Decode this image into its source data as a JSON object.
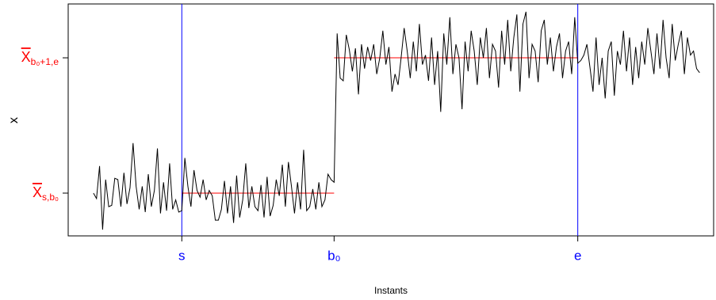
{
  "chart_data": {
    "type": "line",
    "xlabel": "Instants",
    "ylabel": "x",
    "x": [
      1,
      2,
      3,
      4,
      5,
      6,
      7,
      8,
      9,
      10,
      11,
      12,
      13,
      14,
      15,
      16,
      17,
      18,
      19,
      20,
      21,
      22,
      23,
      24,
      25,
      26,
      27,
      28,
      29,
      30,
      31,
      32,
      33,
      34,
      35,
      36,
      37,
      38,
      39,
      40,
      41,
      42,
      43,
      44,
      45,
      46,
      47,
      48,
      49,
      50,
      51,
      52,
      53,
      54,
      55,
      56,
      57,
      58,
      59,
      60,
      61,
      62,
      63,
      64,
      65,
      66,
      67,
      68,
      69,
      70,
      71,
      72,
      73,
      74,
      75,
      76,
      77,
      78,
      79,
      80,
      81,
      82,
      83,
      84,
      85,
      86,
      87,
      88,
      89,
      90,
      91,
      92,
      93,
      94,
      95,
      96,
      97,
      98,
      99,
      100,
      101,
      102,
      103,
      104,
      105,
      106,
      107,
      108,
      109,
      110,
      111,
      112,
      113,
      114,
      115,
      116,
      117,
      118,
      119,
      120,
      121,
      122,
      123,
      124,
      125,
      126,
      127,
      128,
      129,
      130,
      131,
      132,
      133,
      134,
      135,
      136,
      137,
      138,
      139,
      140,
      141,
      142,
      143,
      144,
      145,
      146,
      147,
      148,
      149,
      150,
      151,
      152,
      153,
      154,
      155,
      156,
      157,
      158,
      159,
      160,
      161,
      162,
      163,
      164,
      165,
      166,
      167,
      168,
      169,
      170,
      171,
      172,
      173,
      174,
      175,
      176,
      177,
      178,
      179,
      180,
      181,
      182,
      183,
      184,
      185,
      186,
      187,
      188,
      189,
      190,
      191,
      192,
      193,
      194,
      195,
      196,
      197,
      198,
      199,
      200
    ],
    "series": [
      {
        "color": "#000000",
        "values": [
          0.0,
          -0.04,
          0.2,
          -0.27,
          0.1,
          -0.1,
          -0.09,
          0.11,
          0.1,
          -0.1,
          0.15,
          -0.08,
          0.04,
          0.37,
          0.05,
          -0.12,
          0.05,
          -0.14,
          0.14,
          -0.1,
          0.02,
          0.33,
          -0.15,
          0.08,
          -0.13,
          0.22,
          -0.12,
          -0.05,
          -0.14,
          -0.13,
          0.26,
          0.05,
          -0.1,
          0.17,
          0.02,
          -0.03,
          0.1,
          -0.05,
          0.02,
          -0.02,
          -0.2,
          -0.2,
          -0.12,
          0.09,
          -0.15,
          0.05,
          -0.22,
          0.13,
          -0.18,
          -0.05,
          0.22,
          -0.11,
          0.05,
          -0.1,
          -0.13,
          0.06,
          -0.18,
          0.12,
          -0.17,
          -0.09,
          0.1,
          -0.02,
          0.21,
          -0.1,
          0.23,
          0.05,
          -0.15,
          0.08,
          -0.12,
          0.32,
          -0.13,
          -0.1,
          0.03,
          -0.12,
          0.08,
          -0.1,
          -0.05,
          0.14,
          0.1,
          0.08,
          1.18,
          0.85,
          0.83,
          1.17,
          1.06,
          0.9,
          1.07,
          0.73,
          1.1,
          0.92,
          1.08,
          0.98,
          1.1,
          0.88,
          1.0,
          1.2,
          0.95,
          1.08,
          0.75,
          0.88,
          0.8,
          1.0,
          1.22,
          1.05,
          0.85,
          1.12,
          0.9,
          1.25,
          0.95,
          1.02,
          0.83,
          1.15,
          0.8,
          1.05,
          0.6,
          1.18,
          0.95,
          1.3,
          0.88,
          1.1,
          1.0,
          0.62,
          1.12,
          0.9,
          1.2,
          1.05,
          0.8,
          1.15,
          1.0,
          1.22,
          0.85,
          1.1,
          1.05,
          0.78,
          1.2,
          0.95,
          1.28,
          0.9,
          1.15,
          1.32,
          0.75,
          1.25,
          1.34,
          0.85,
          1.1,
          1.05,
          0.82,
          1.2,
          1.28,
          0.95,
          1.15,
          0.9,
          1.08,
          1.18,
          0.85,
          1.05,
          1.12,
          0.88,
          1.3,
          0.96,
          0.98,
          1.02,
          1.1,
          0.93,
          0.75,
          1.15,
          0.8,
          1.0,
          0.7,
          1.05,
          1.12,
          0.72,
          1.05,
          0.95,
          1.2,
          0.9,
          1.15,
          0.8,
          1.08,
          0.85,
          1.12,
          0.95,
          1.22,
          1.05,
          0.88,
          1.18,
          0.92,
          1.28,
          1.0,
          0.85,
          1.25,
          0.98,
          1.1,
          1.2,
          0.88,
          1.15,
          1.02,
          1.05,
          0.92,
          0.89
        ]
      }
    ],
    "xlim": [
      -7.3,
      204.6
    ],
    "ylim": [
      -0.316,
      1.398
    ],
    "xticks": [
      {
        "value": 30,
        "label": "s"
      },
      {
        "value": 80,
        "label": "b₀"
      },
      {
        "value": 160,
        "label": "e"
      }
    ],
    "yticks": [
      {
        "value": 0,
        "label": "X",
        "subscript": "s,b₀"
      },
      {
        "value": 1,
        "label": "X",
        "subscript": "b₀+1,e"
      }
    ],
    "xtick_color": "#0000ff",
    "ytick_color": "#ff0000",
    "vlines": {
      "color": "#0000ff",
      "x": [
        30,
        160
      ]
    },
    "mean_segments": {
      "color": "#ff0000",
      "items": [
        {
          "x": [
            30,
            80
          ],
          "y": 0
        },
        {
          "x": [
            80,
            160
          ],
          "y": 1
        }
      ]
    }
  }
}
